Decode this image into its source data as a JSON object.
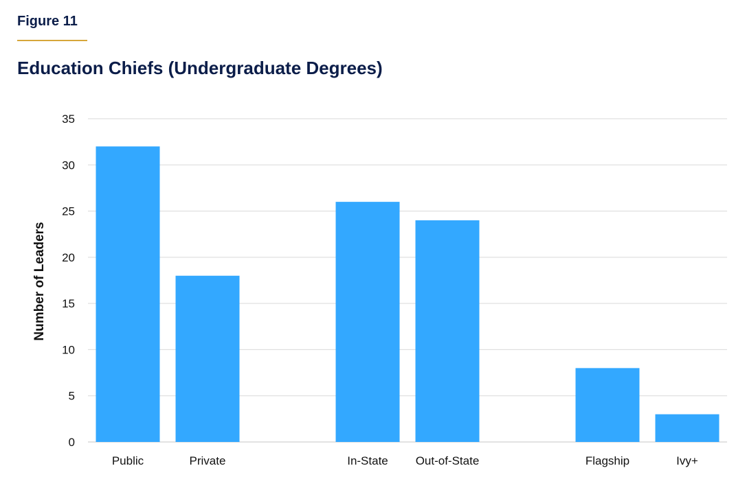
{
  "figure_label": "Figure 11",
  "colors": {
    "bar": "#33a8ff",
    "grid": "#d9d9d9",
    "title": "#0b1d49",
    "accent_rule": "#d6a63a"
  },
  "chart_data": {
    "type": "bar",
    "title": "Education Chiefs (Undergraduate Degrees)",
    "xlabel": "",
    "ylabel": "Number of Leaders",
    "categories": [
      "Public",
      "Private",
      "In-State",
      "Out-of-State",
      "Flagship",
      "Ivy+"
    ],
    "groups": [
      [
        "Public",
        "Private"
      ],
      [
        "In-State",
        "Out-of-State"
      ],
      [
        "Flagship",
        "Ivy+"
      ]
    ],
    "values": [
      32,
      18,
      26,
      24,
      8,
      3
    ],
    "ylim": [
      0,
      35
    ],
    "yticks": [
      0,
      5,
      10,
      15,
      20,
      25,
      30,
      35
    ],
    "grid": true,
    "legend": "none"
  }
}
